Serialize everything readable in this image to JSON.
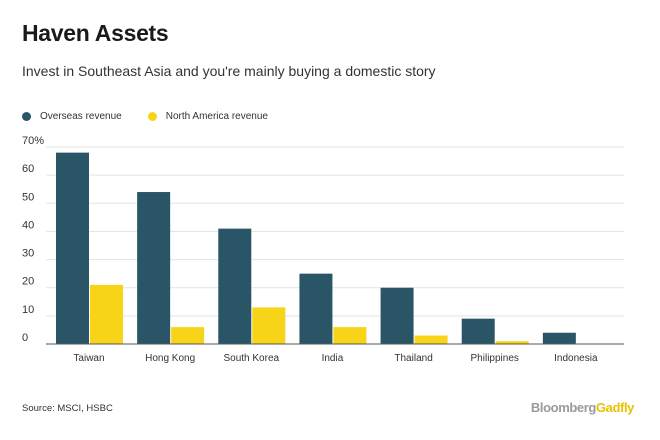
{
  "header": {
    "title": "Haven Assets",
    "subtitle": "Invest in Southeast Asia and you're mainly buying a domestic story"
  },
  "chart_data": {
    "type": "bar",
    "categories": [
      "Taiwan",
      "Hong Kong",
      "South Korea",
      "India",
      "Thailand",
      "Philippines",
      "Indonesia"
    ],
    "series": [
      {
        "name": "Overseas revenue",
        "color": "#2a5567",
        "values": [
          68,
          54,
          41,
          25,
          20,
          9,
          4
        ]
      },
      {
        "name": "North America revenue",
        "color": "#f7d417",
        "values": [
          21,
          6,
          13,
          6,
          3,
          1,
          0
        ]
      }
    ],
    "ylim": [
      0,
      70
    ],
    "yticks": [
      0,
      10,
      20,
      30,
      40,
      50,
      60,
      70
    ],
    "ytick_labels": [
      "0",
      "10",
      "20",
      "30",
      "40",
      "50",
      "60",
      "70%"
    ],
    "grid": true,
    "legend_position": "top-left"
  },
  "footer": {
    "source": "Source: MSCI, HSBC",
    "brand_primary": "Bloomberg",
    "brand_secondary": "Gadfly"
  }
}
